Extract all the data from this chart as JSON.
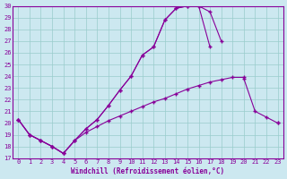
{
  "xlabel": "Windchill (Refroidissement éolien,°C)",
  "bg_color": "#cce8f0",
  "line_color": "#880099",
  "grid_color": "#99cccc",
  "xlim": [
    -0.5,
    23.5
  ],
  "ylim": [
    17,
    30
  ],
  "yticks": [
    17,
    18,
    19,
    20,
    21,
    22,
    23,
    24,
    25,
    26,
    27,
    28,
    29,
    30
  ],
  "xticks": [
    0,
    1,
    2,
    3,
    4,
    5,
    6,
    7,
    8,
    9,
    10,
    11,
    12,
    13,
    14,
    15,
    16,
    17,
    18,
    19,
    20,
    21,
    22,
    23
  ],
  "line1_x": [
    0,
    1,
    2,
    3,
    4,
    5,
    6,
    7,
    8,
    9,
    10,
    11,
    12,
    13,
    14,
    15,
    16,
    17,
    18,
    19,
    20,
    21,
    22,
    23
  ],
  "line1_y": [
    20.3,
    19.0,
    18.5,
    18.0,
    17.4,
    18.5,
    19.2,
    19.7,
    20.2,
    20.6,
    21.0,
    21.4,
    21.8,
    22.1,
    22.5,
    22.9,
    23.2,
    23.5,
    23.7,
    23.9,
    23.9,
    null,
    null,
    20.0
  ],
  "line2_x": [
    0,
    1,
    2,
    3,
    4,
    5,
    6,
    7,
    8,
    9,
    10,
    11,
    12,
    13,
    14,
    15,
    16,
    17,
    18,
    19,
    20,
    21,
    22,
    23
  ],
  "line2_y": [
    null,
    null,
    null,
    null,
    null,
    null,
    null,
    null,
    null,
    null,
    null,
    null,
    null,
    null,
    null,
    null,
    null,
    null,
    null,
    null,
    23.8,
    21.0,
    20.5,
    20.0
  ],
  "line3_x": [
    0,
    1,
    2,
    3,
    4,
    5,
    6,
    7,
    8,
    9,
    10,
    11,
    12,
    13,
    14,
    15,
    16,
    17,
    18,
    19,
    20,
    21,
    22,
    23
  ],
  "line3_y": [
    20.3,
    19.0,
    18.5,
    18.0,
    17.4,
    18.5,
    19.5,
    20.3,
    21.5,
    22.8,
    24.0,
    25.8,
    26.5,
    28.8,
    29.8,
    30.0,
    30.0,
    29.5,
    27.0,
    null,
    null,
    null,
    null,
    null
  ],
  "line4_x": [
    0,
    1,
    2,
    3,
    4,
    5,
    6,
    7,
    8,
    9,
    10,
    11,
    12,
    13,
    14,
    15,
    16,
    17,
    18,
    19,
    20,
    21,
    22,
    23
  ],
  "line4_y": [
    20.3,
    19.0,
    18.5,
    18.0,
    17.4,
    18.5,
    19.5,
    20.3,
    21.5,
    22.8,
    24.0,
    25.8,
    26.5,
    28.8,
    29.8,
    30.0,
    30.0,
    26.5,
    null,
    null,
    null,
    null,
    null,
    null
  ]
}
